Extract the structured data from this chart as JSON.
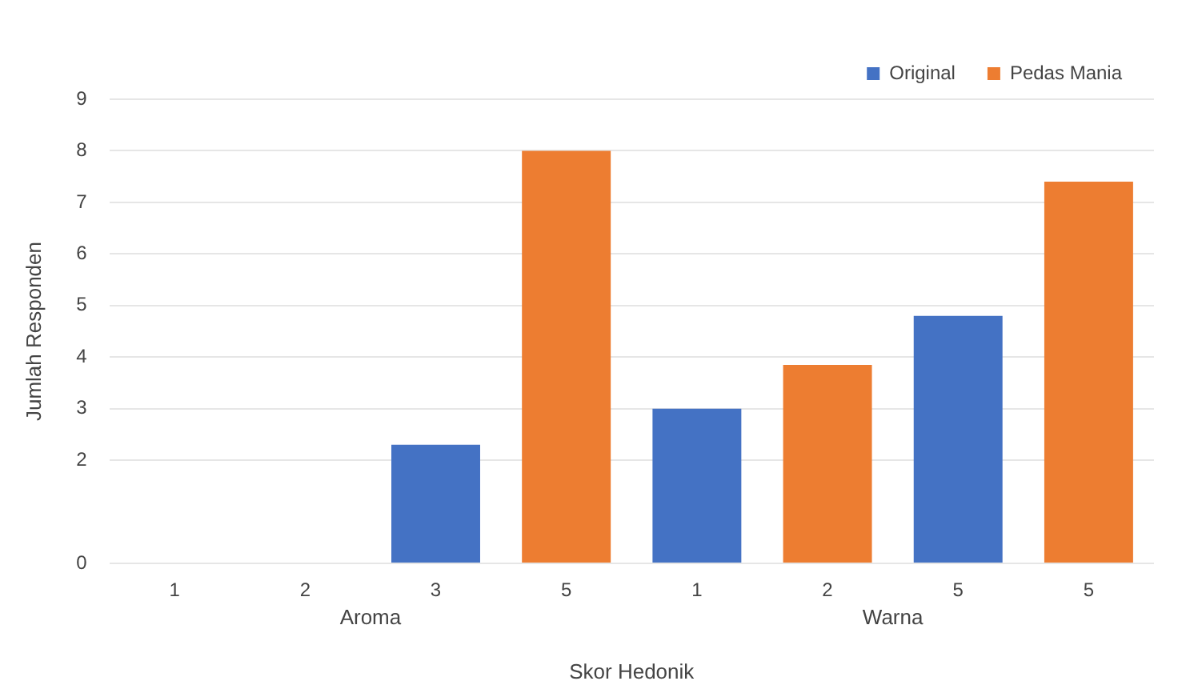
{
  "chart_data": {
    "type": "bar",
    "xlabel": "Skor Hedonik",
    "ylabel": "Jumlah Responden",
    "categories": [
      "1",
      "2",
      "3",
      "5",
      "1",
      "2",
      "5",
      "5"
    ],
    "series": [
      {
        "name": "Original",
        "color": "#4472c4",
        "values": [
          null,
          null,
          2.3,
          null,
          3.0,
          null,
          4.8,
          null
        ]
      },
      {
        "name": "Pedas Mania",
        "color": "#ed7d31",
        "values": [
          null,
          null,
          null,
          8.0,
          null,
          3.85,
          null,
          7.4
        ]
      }
    ],
    "ylim": [
      0,
      9
    ],
    "yticks": [
      0,
      2,
      3,
      4,
      5,
      6,
      7,
      8,
      9
    ],
    "annotations": [
      "Aroma",
      "Warna"
    ],
    "grid": "y",
    "legend": "top right"
  }
}
